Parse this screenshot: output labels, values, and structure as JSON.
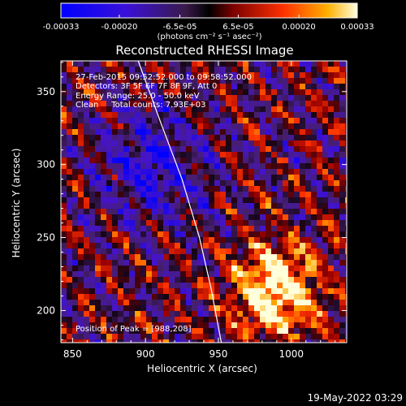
{
  "colorbar": {
    "ticks": [
      "-0.00033",
      "-0.00020",
      "-6.5e-05",
      "6.5e-05",
      "0.00020",
      "0.00033"
    ],
    "unit_label": "(photons cm⁻² s⁻¹ asec⁻²)",
    "range": [
      -0.00033,
      0.00033
    ]
  },
  "chart_data": {
    "type": "heatmap",
    "title": "Reconstructed RHESSI Image",
    "xlabel": "Heliocentric X (arcsec)",
    "ylabel": "Heliocentric Y (arcsec)",
    "xlim": [
      842,
      1038
    ],
    "ylim": [
      178,
      371
    ],
    "x_ticks": [
      850,
      900,
      950,
      1000
    ],
    "y_ticks": [
      200,
      250,
      300,
      350
    ],
    "peak": [
      988,
      208
    ],
    "limb_curve": [
      [
        895,
        371
      ],
      [
        910,
        330
      ],
      [
        925,
        290
      ],
      [
        937,
        250
      ],
      [
        945,
        215
      ],
      [
        952,
        178
      ]
    ],
    "annotations": {
      "time_range": "27-Feb-2015 09:52:52.000 to 09:58:52.000",
      "detectors": "Detectors: 3F 5F 6F 7F 8F 9F, Att 0",
      "energy_range": "Energy Range: 25.0 - 50.0 keV",
      "method_counts": "Clean     Total counts: 7.93E+03",
      "peak_position": "Position of Peak = [988,208]"
    }
  },
  "footer": {
    "date": "19-May-2022 03:29"
  }
}
